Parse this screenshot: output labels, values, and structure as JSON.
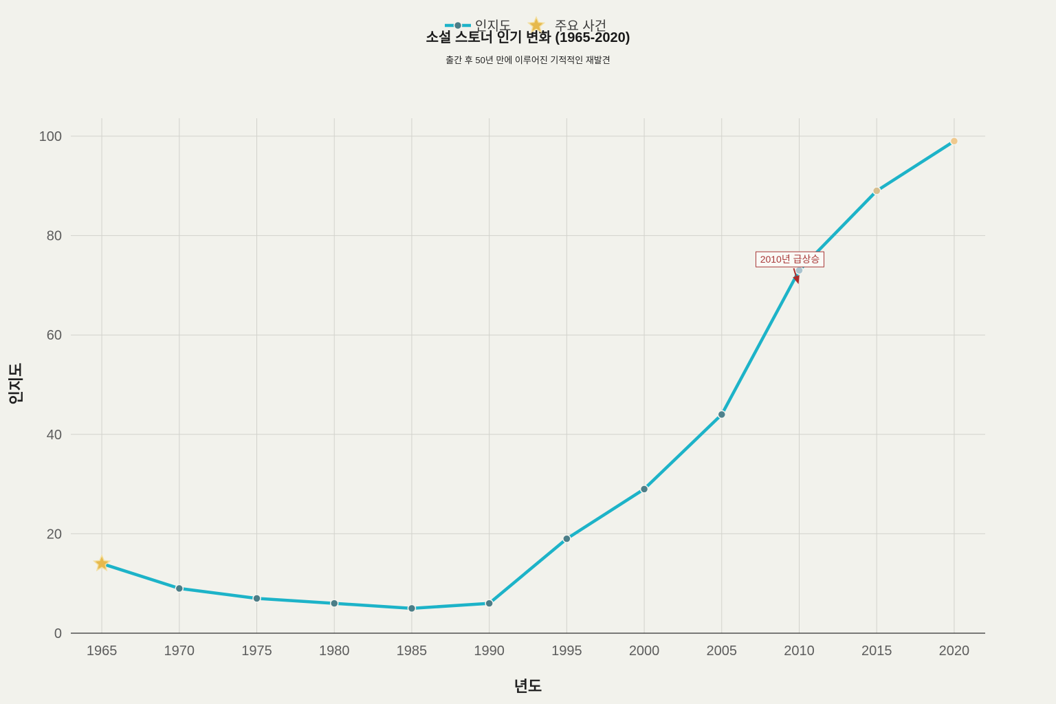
{
  "chart_data": {
    "type": "line",
    "title": "소설 스토너 인기 변화 (1965-2020)",
    "subtitle": "출간 후 50년 만에 이루어진 기적적인 재발견",
    "xlabel": "년도",
    "ylabel": "인지도",
    "x": [
      1965,
      1970,
      1975,
      1980,
      1985,
      1990,
      1995,
      2000,
      2005,
      2010,
      2015,
      2020
    ],
    "series": [
      {
        "name": "인지도",
        "values": [
          14,
          9,
          7,
          6,
          5,
          6,
          19,
          29,
          44,
          73,
          89,
          99
        ],
        "color": "#1db3c8",
        "marker_colors": [
          "#4b7d87",
          "#4b7d87",
          "#4b7d87",
          "#4b7d87",
          "#4b7d87",
          "#4b7d87",
          "#4c7e88",
          "#4d7f89",
          "#4e818c",
          "#a9c3cf",
          "#d7bf8f",
          "#efc98e"
        ]
      }
    ],
    "events": {
      "name": "주요 사건",
      "points": [
        {
          "x": 1965,
          "y": 14
        }
      ],
      "color": "#e6b94d"
    },
    "xticks": [
      1965,
      1970,
      1975,
      1980,
      1985,
      1990,
      1995,
      2000,
      2005,
      2010,
      2015,
      2020
    ],
    "yticks": [
      0,
      20,
      40,
      60,
      80,
      100
    ],
    "xlim": [
      1963,
      2022
    ],
    "ylim": [
      0,
      103.6
    ],
    "grid": true,
    "legend_position": "top-center",
    "annotations": [
      {
        "text": "2010년 급상승",
        "x": 2010,
        "y": 73,
        "color": "#a83838",
        "arrow_color": "#b02a2a"
      }
    ]
  },
  "colors": {
    "background": "#f2f2ec",
    "grid": "#d2d2cc",
    "axis": "#2f2f2f",
    "marker_outline": "#f4f4ef",
    "star_outline": "#f3dfa0",
    "annotation_box": "#fafaf6"
  }
}
